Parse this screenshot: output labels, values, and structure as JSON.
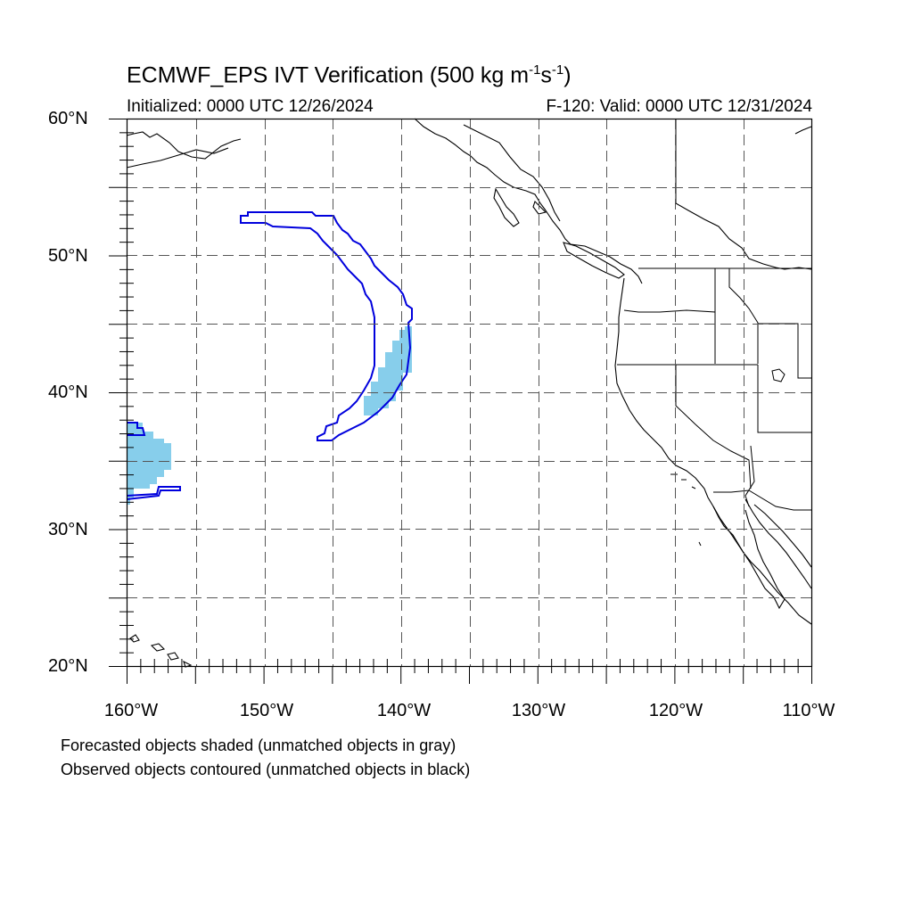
{
  "header": {
    "title_main": "ECMWF_EPS IVT Verification (500 kg m",
    "title_exp1": "-1",
    "title_mid": "s",
    "title_exp2": "-1",
    "title_end": ")",
    "init_text": "Initialized: 0000 UTC 12/26/2024",
    "valid_text": "F-120: Valid: 0000 UTC 12/31/2024"
  },
  "axes": {
    "lat_labels": [
      "60°N",
      "50°N",
      "40°N",
      "30°N",
      "20°N"
    ],
    "lon_labels": [
      "160°W",
      "150°W",
      "140°W",
      "130°W",
      "120°W",
      "110°W"
    ]
  },
  "map": {
    "lon_range": [
      -160,
      -110
    ],
    "lat_range": [
      20,
      60
    ],
    "grid": "dashed, every 5 degrees",
    "forecast_color": "#87ceeb",
    "observed_color": "#0000dd",
    "coastline_color": "#000000"
  },
  "footnotes": {
    "line1": "Forecasted objects shaded (unmatched objects in gray)",
    "line2": "Observed objects contoured (unmatched objects in black)"
  }
}
